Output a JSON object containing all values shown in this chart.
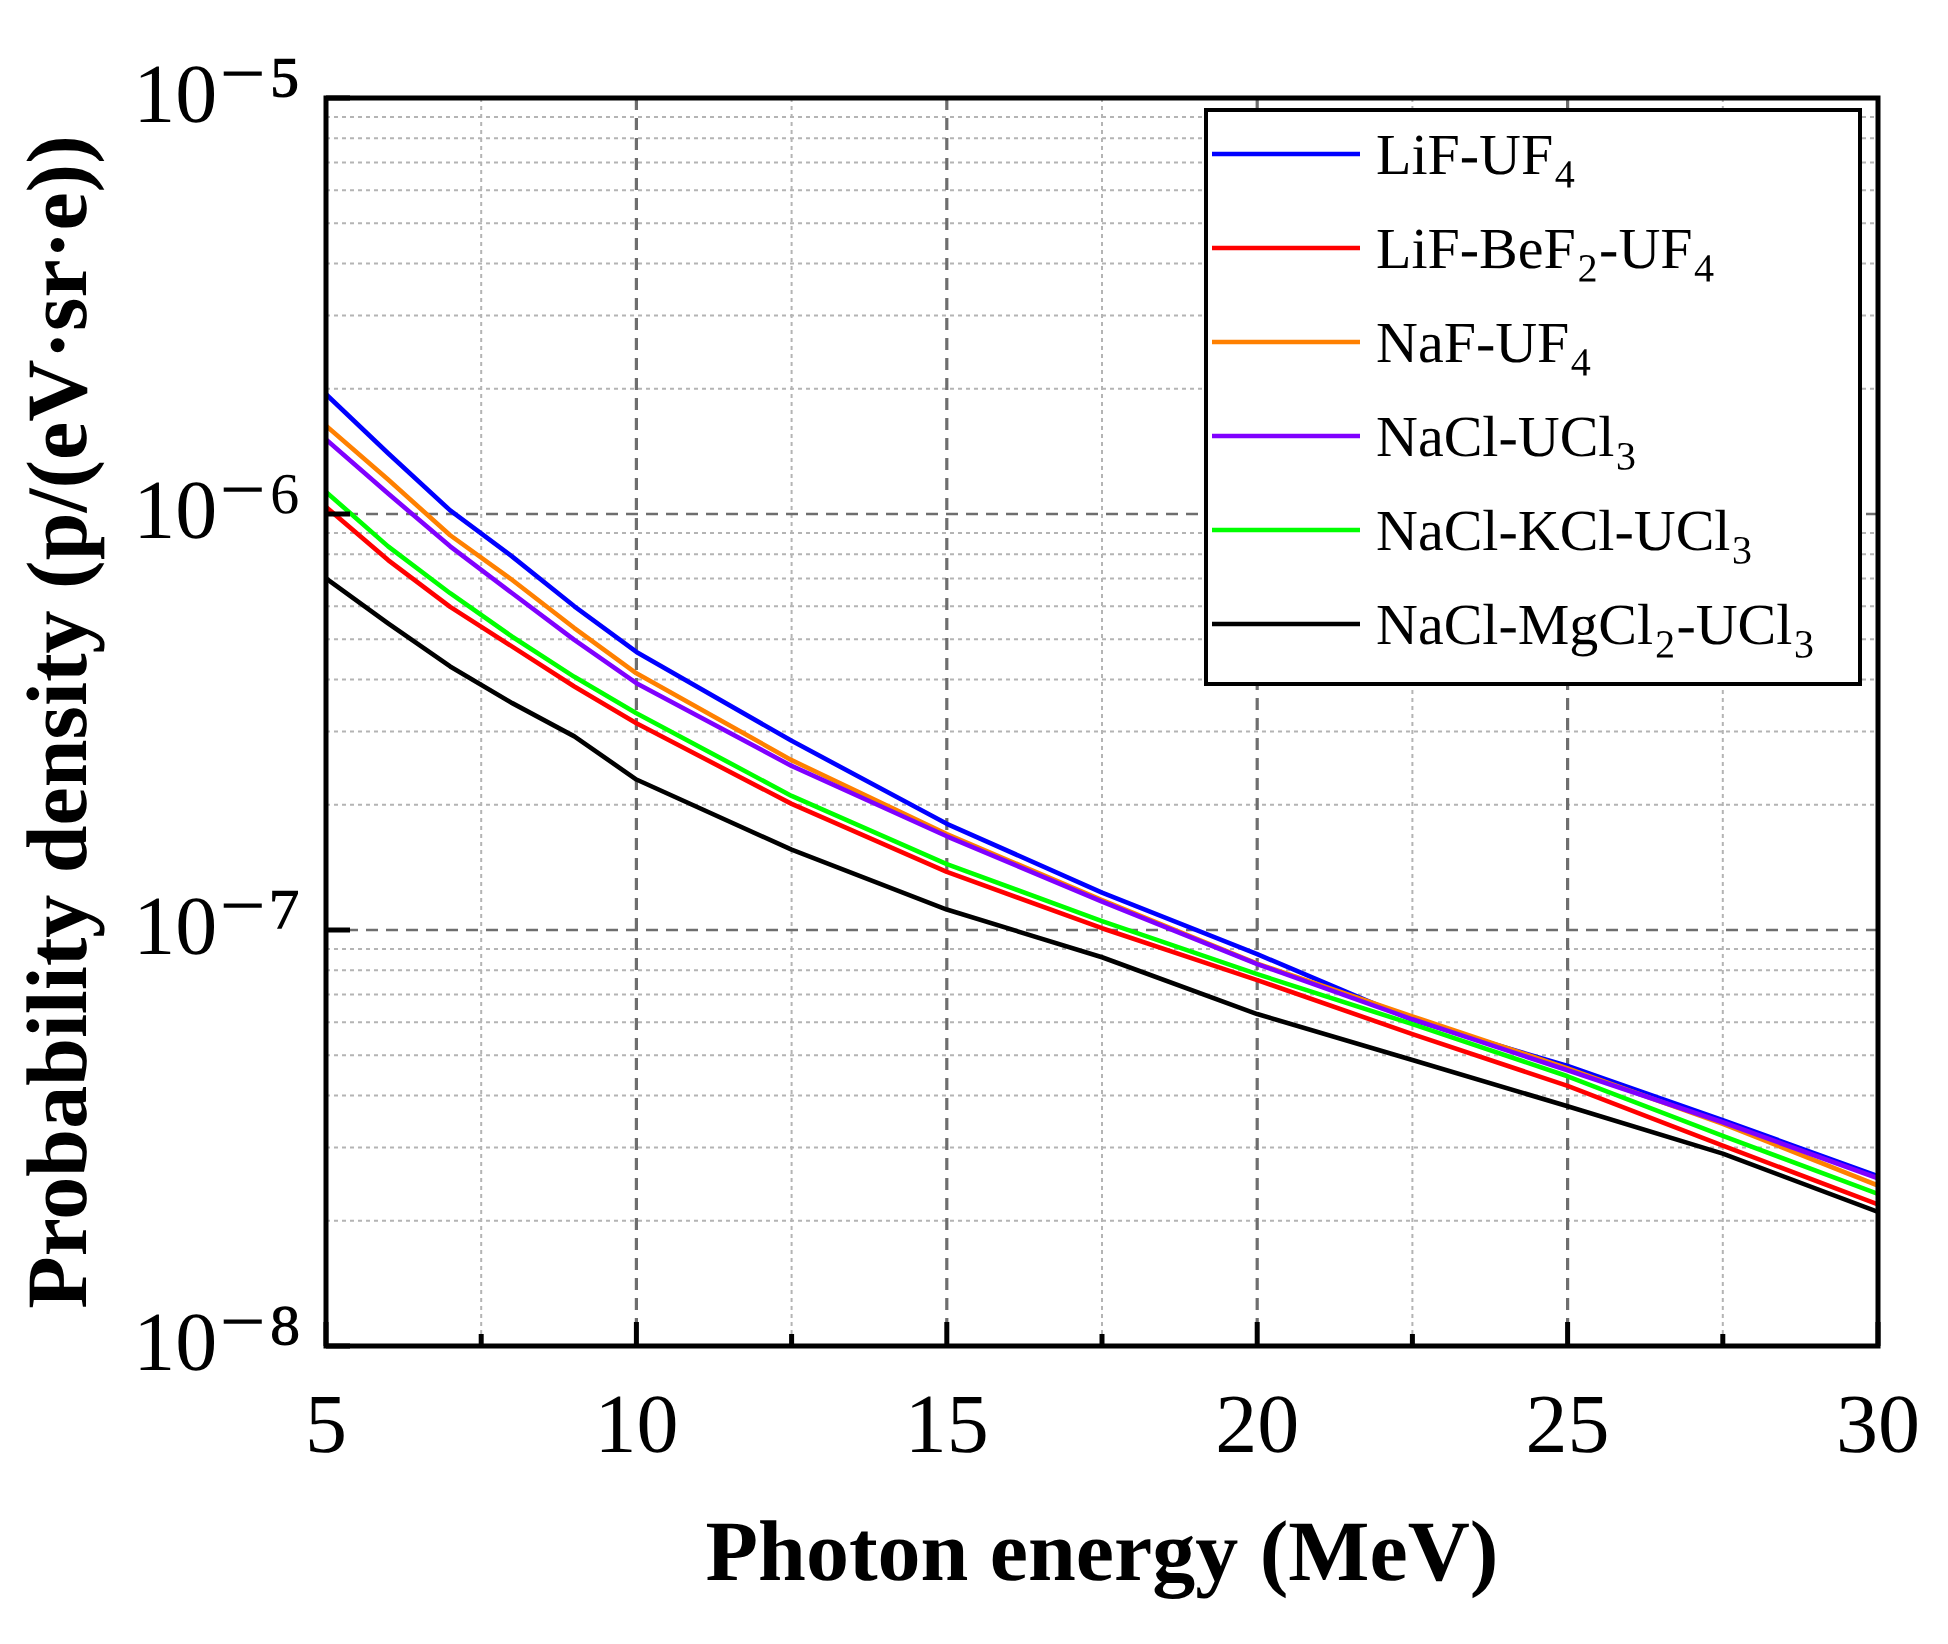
{
  "chart_data": {
    "type": "line",
    "xlabel": "Photon energy (MeV)",
    "ylabel": "Probability density (p/(eV·sr·e))",
    "x": [
      5,
      6,
      7,
      8,
      9,
      10,
      12.5,
      15,
      17.5,
      20,
      22.5,
      25,
      27.5,
      30
    ],
    "series": [
      {
        "name": "LiF-UF₄",
        "color": "#0000ff",
        "values": [
          1.94e-06,
          1.4e-06,
          1.02e-06,
          7.9e-07,
          6e-07,
          4.66e-07,
          2.85e-07,
          1.8e-07,
          1.23e-07,
          8.75e-08,
          6.08e-08,
          4.71e-08,
          3.49e-08,
          2.56e-08
        ]
      },
      {
        "name": "LiF-BeF₂-UF₄",
        "color": "#ff0000",
        "values": [
          1.04e-06,
          7.75e-07,
          5.98e-07,
          4.8e-07,
          3.85e-07,
          3.14e-07,
          2.01e-07,
          1.38e-07,
          1.01e-07,
          7.58e-08,
          5.62e-08,
          4.22e-08,
          3.03e-08,
          2.19e-08
        ]
      },
      {
        "name": "NaF-UF₄",
        "color": "#ff8000",
        "values": [
          1.63e-06,
          1.21e-06,
          8.89e-07,
          6.94e-07,
          5.32e-07,
          4.14e-07,
          2.56e-07,
          1.7e-07,
          1.18e-07,
          8.3e-08,
          6.2e-08,
          4.65e-08,
          3.42e-08,
          2.43e-08
        ]
      },
      {
        "name": "NaCl-UCl₃",
        "color": "#8000ff",
        "values": [
          1.51e-06,
          1.12e-06,
          8.36e-07,
          6.45e-07,
          4.98e-07,
          3.92e-07,
          2.48e-07,
          1.68e-07,
          1.17e-07,
          8.28e-08,
          6.1e-08,
          4.6e-08,
          3.45e-08,
          2.53e-08
        ]
      },
      {
        "name": "NaCl-KCl-UCl₃",
        "color": "#00ff00",
        "values": [
          1.13e-06,
          8.36e-07,
          6.45e-07,
          5.07e-07,
          4.06e-07,
          3.32e-07,
          2.1e-07,
          1.44e-07,
          1.05e-07,
          7.83e-08,
          5.94e-08,
          4.45e-08,
          3.2e-08,
          2.32e-08
        ]
      },
      {
        "name": "NaCl-MgCl₂-UCl₃",
        "color": "#000000",
        "values": [
          7e-07,
          5.46e-07,
          4.3e-07,
          3.51e-07,
          2.92e-07,
          2.3e-07,
          1.56e-07,
          1.12e-07,
          8.6e-08,
          6.28e-08,
          4.87e-08,
          3.77e-08,
          2.9e-08,
          2.1e-08
        ]
      }
    ],
    "xlim": [
      5,
      30
    ],
    "xticks": [
      5,
      {
        "value": 7.5,
        "label": null
      },
      10,
      {
        "value": 12.5,
        "label": null
      },
      15,
      {
        "value": 17.5,
        "label": null
      },
      20,
      {
        "value": 22.5,
        "label": null
      },
      25,
      {
        "value": 27.5,
        "label": null
      },
      30
    ],
    "ylim": [
      1e-08,
      1e-05
    ],
    "yticks": [
      {
        "value": 1e-08,
        "label": "10⁻⁸"
      },
      {
        "value": 1e-07,
        "label": "10⁻⁷"
      },
      {
        "value": 1e-06,
        "label": "10⁻⁶"
      },
      {
        "value": 1e-05,
        "label": "10⁻⁵"
      }
    ],
    "log": "y",
    "grid": true,
    "legend": "top right"
  }
}
